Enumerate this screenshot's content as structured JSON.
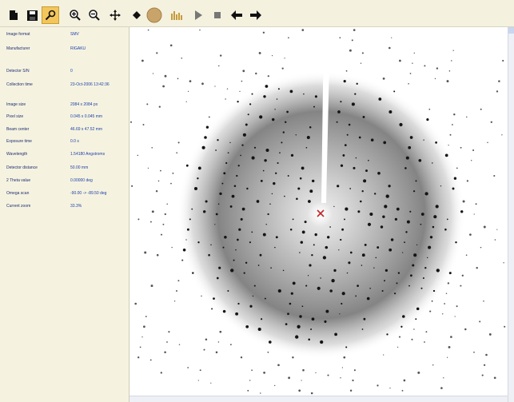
{
  "toolbar": {
    "buttons": [
      {
        "icon": "new-file-icon"
      },
      {
        "icon": "save-icon"
      },
      {
        "icon": "search-icon"
      },
      {
        "icon": "zoom-in-icon"
      },
      {
        "icon": "zoom-out-icon"
      },
      {
        "icon": "pan-icon"
      },
      {
        "icon": "point-icon"
      },
      {
        "icon": "circle-icon"
      },
      {
        "icon": "histogram-icon"
      },
      {
        "icon": "play-icon"
      },
      {
        "icon": "stop-icon"
      },
      {
        "icon": "previous-icon"
      },
      {
        "icon": "next-icon"
      }
    ]
  },
  "info": {
    "rows": [
      {
        "label": "Image format",
        "value": "SMV"
      },
      {
        "label": "Manufacturer",
        "value": "RIGAKU"
      },
      {
        "label": "Detector S/N",
        "value": "0"
      },
      {
        "label": "Collection time",
        "value": "23-Oct-2006 13:42:36"
      },
      {
        "label": "Image size",
        "value": "2084 x 2084 px"
      },
      {
        "label": "Pixel size",
        "value": "0.045 x 0.045 mm"
      },
      {
        "label": "Beam center",
        "value": "46.69 x 47.52 mm"
      },
      {
        "label": "Exposure time",
        "value": "0.0 s"
      },
      {
        "label": "Wavelength",
        "value": "1.54180 Angstroms"
      },
      {
        "label": "Detector distance",
        "value": "50.00 mm"
      },
      {
        "label": "2 Theta value",
        "value": "0.00000 deg"
      },
      {
        "label": "Omega scan",
        "value": "-90.00 -> -89.50 deg"
      },
      {
        "label": "Current zoom",
        "value": "33.3%"
      }
    ]
  },
  "viewer": {
    "beam_marker": "x-mark-icon"
  },
  "colors": {
    "toolbar_highlight": "#f3c65c",
    "label_text": "#202c70",
    "value_text": "#1f3ea8",
    "panel_bg": "#f5f3e0"
  }
}
